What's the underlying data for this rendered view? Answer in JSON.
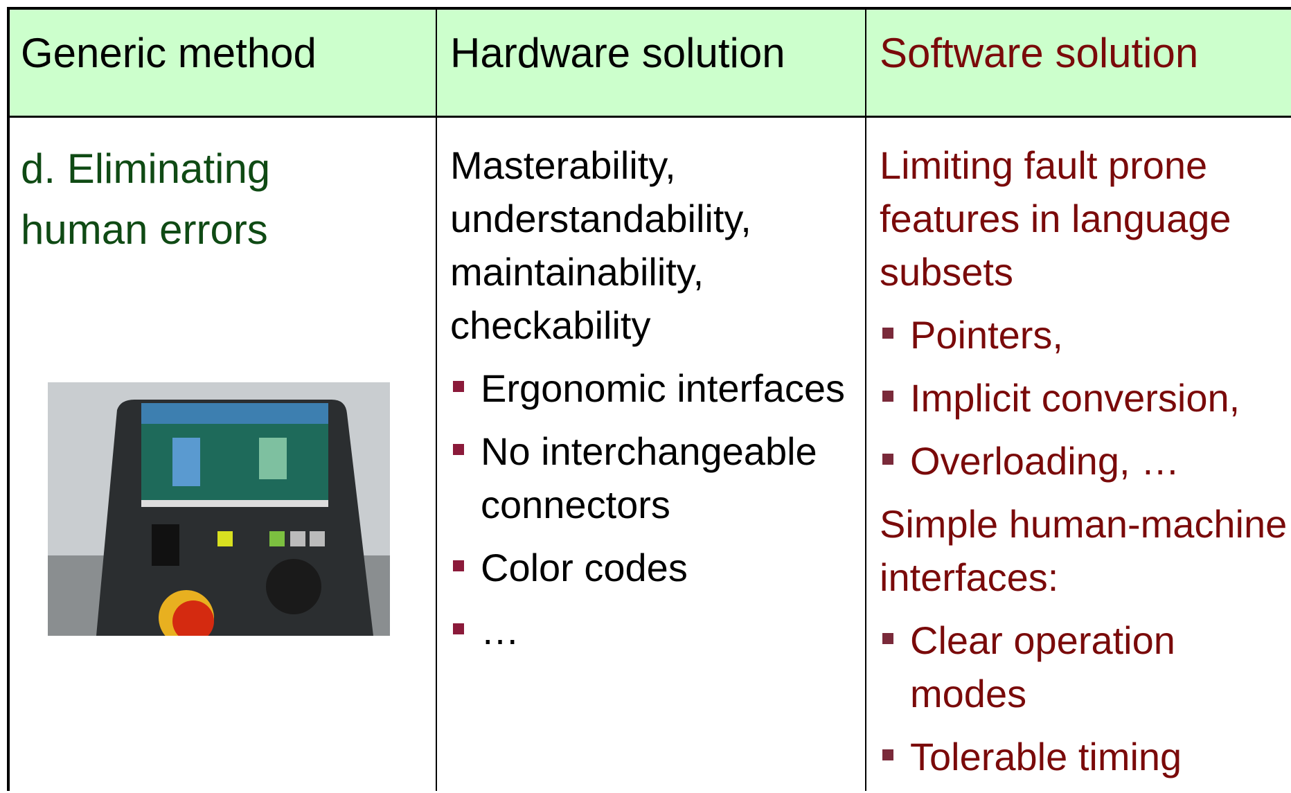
{
  "table": {
    "header": [
      "Generic method",
      "Hardware solution",
      "Software solution"
    ],
    "method": {
      "label": "d. Eliminating human errors"
    },
    "hardware": {
      "intro": "Masterability, understandability, maintainability, checkability",
      "bullets": [
        "Ergonomic interfaces",
        "No interchangeable connectors",
        "Color codes",
        "…"
      ]
    },
    "software": {
      "intro1": "Limiting fault prone features in language subsets",
      "bullets1": [
        "Pointers,",
        "Implicit conversion,",
        "Overloading, …"
      ],
      "intro2": "Simple human-machine interfaces:",
      "bullets2": [
        "Clear operation modes",
        "Tolerable timing"
      ]
    }
  }
}
